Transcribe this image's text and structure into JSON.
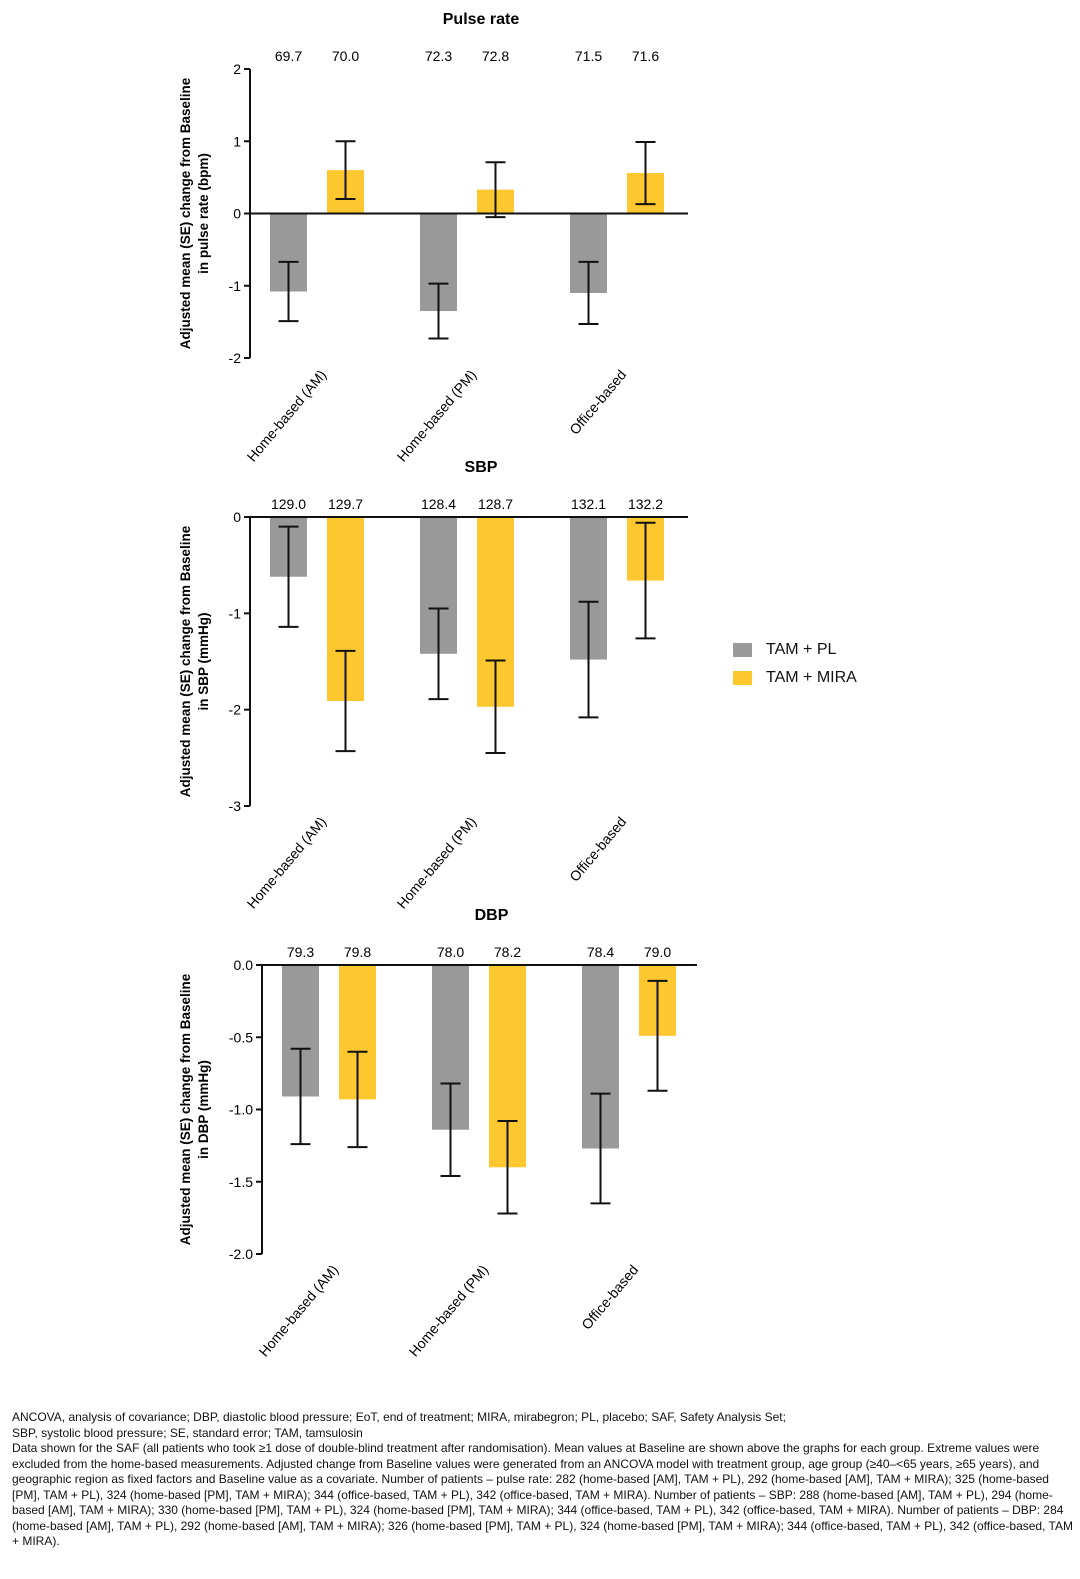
{
  "legend": {
    "items": [
      {
        "label": "TAM + PL",
        "color": "#999999"
      },
      {
        "label": "TAM + MIRA",
        "color": "#FDC82F"
      }
    ]
  },
  "chart_data": [
    {
      "type": "bar",
      "title": "Pulse rate",
      "ylabel": "Adjusted mean (SE) change from Baseline in pulse rate (bpm)",
      "ylabel_lines": [
        "Adjusted mean (SE) change from Baseline",
        "in pulse rate (bpm)"
      ],
      "ylim": [
        -2,
        2
      ],
      "yticks": [
        2,
        1,
        0,
        -1,
        -2
      ],
      "ytick_labels": [
        "2",
        "1",
        "0",
        "-1",
        "-2"
      ],
      "categories": [
        "Home-based (AM)",
        "Home-based (PM)",
        "Office-based"
      ],
      "series": [
        {
          "name": "TAM + PL",
          "color": "#999999",
          "values": [
            -1.08,
            -1.35,
            -1.1
          ],
          "se": [
            0.41,
            0.38,
            0.43
          ],
          "baseline": [
            "69.7",
            "72.3",
            "71.5"
          ]
        },
        {
          "name": "TAM + MIRA",
          "color": "#FDC82F",
          "values": [
            0.6,
            0.33,
            0.56
          ],
          "se": [
            0.4,
            0.38,
            0.43
          ],
          "baseline": [
            "70.0",
            "72.8",
            "71.6"
          ]
        }
      ]
    },
    {
      "type": "bar",
      "title": "SBP",
      "ylabel": "Adjusted mean (SE) change from Baseline in SBP (mmHg)",
      "ylabel_lines": [
        "Adjusted mean (SE) change from Baseline",
        "in SBP (mmHg)"
      ],
      "ylim": [
        -3,
        0
      ],
      "yticks": [
        0,
        -1,
        -2,
        -3
      ],
      "ytick_labels": [
        "0",
        "-1",
        "-2",
        "-3"
      ],
      "categories": [
        "Home-based (AM)",
        "Home-based (PM)",
        "Office-based"
      ],
      "series": [
        {
          "name": "TAM + PL",
          "color": "#999999",
          "values": [
            -0.62,
            -1.42,
            -1.48
          ],
          "se": [
            0.52,
            0.47,
            0.6
          ],
          "baseline": [
            "129.0",
            "128.4",
            "132.1"
          ]
        },
        {
          "name": "TAM + MIRA",
          "color": "#FDC82F",
          "values": [
            -1.91,
            -1.97,
            -0.66
          ],
          "se": [
            0.52,
            0.48,
            0.6
          ],
          "baseline": [
            "129.7",
            "128.7",
            "132.2"
          ]
        }
      ]
    },
    {
      "type": "bar",
      "title": "DBP",
      "ylabel": "Adjusted mean (SE) change from Baseline in DBP (mmHg)",
      "ylabel_lines": [
        "Adjusted mean (SE) change from Baseline",
        "in DBP (mmHg)"
      ],
      "ylim": [
        -2.0,
        0.0
      ],
      "yticks": [
        0.0,
        -0.5,
        -1.0,
        -1.5,
        -2.0
      ],
      "ytick_labels": [
        "0.0",
        "-0.5",
        "-1.0",
        "-1.5",
        "-2.0"
      ],
      "categories": [
        "Home-based (AM)",
        "Home-based (PM)",
        "Office-based"
      ],
      "series": [
        {
          "name": "TAM + PL",
          "color": "#999999",
          "values": [
            -0.91,
            -1.14,
            -1.27
          ],
          "se": [
            0.33,
            0.32,
            0.38
          ],
          "baseline": [
            "79.3",
            "78.0",
            "78.4"
          ]
        },
        {
          "name": "TAM + MIRA",
          "color": "#FDC82F",
          "values": [
            -0.93,
            -1.4,
            -0.49
          ],
          "se": [
            0.33,
            0.32,
            0.38
          ],
          "baseline": [
            "79.8",
            "78.2",
            "79.0"
          ]
        }
      ]
    }
  ],
  "footnotes": [
    "ANCOVA, analysis of covariance; DBP, diastolic blood pressure; EoT, end of treatment; MIRA, mirabegron; PL, placebo; SAF, Safety Analysis Set;",
    "SBP, systolic blood pressure; SE, standard error; TAM, tamsulosin",
    "Data shown for the SAF (all patients who took ≥1 dose of double-blind treatment after randomisation). Mean values at Baseline are shown above the graphs for each group. Extreme values were excluded from the home-based measurements. Adjusted change from Baseline values were generated from an ANCOVA model with treatment group, age group (≥40–<65 years, ≥65 years), and geographic region as fixed factors and Baseline value as a covariate. Number of patients – pulse rate: 282 (home-based [AM], TAM + PL), 292 (home-based [AM], TAM + MIRA); 325 (home-based [PM], TAM + PL), 324 (home-based [PM], TAM + MIRA); 344 (office-based, TAM + PL), 342 (office-based, TAM + MIRA). Number of patients – SBP: 288 (home-based [AM], TAM + PL), 294 (home-based [AM], TAM + MIRA); 330 (home-based [PM], TAM + PL), 324 (home-based [PM], TAM + MIRA); 344 (office-based, TAM + PL), 342 (office-based, TAM + MIRA). Number of patients – DBP: 284 (home-based [AM], TAM + PL), 292 (home-based [AM], TAM + MIRA); 326 (home-based [PM], TAM + PL), 324 (home-based [PM], TAM + MIRA); 344 (office-based, TAM + PL), 342 (office-based, TAM + MIRA)."
  ]
}
